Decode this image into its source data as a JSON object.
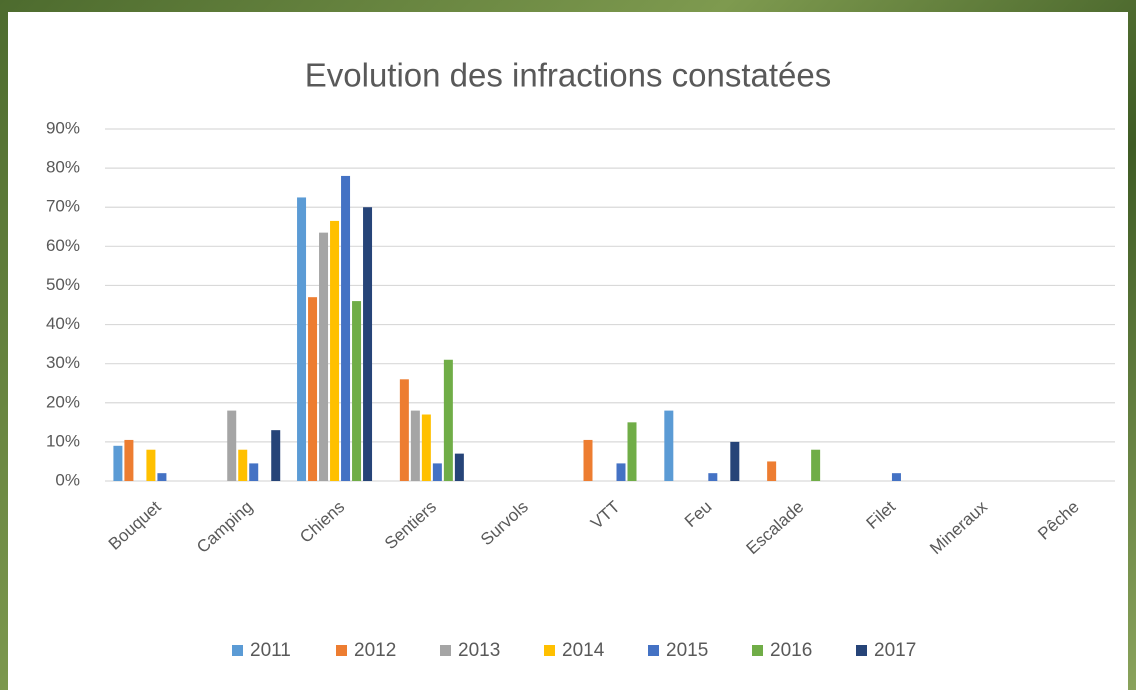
{
  "chart_data": {
    "type": "bar",
    "title": "Evolution des infractions constatées",
    "categories": [
      "Bouquet",
      "Camping",
      "Chiens",
      "Sentiers",
      "Survols",
      "VTT",
      "Feu",
      "Escalade",
      "Filet",
      "Mineraux",
      "Pêche"
    ],
    "series": [
      {
        "name": "2011",
        "color": "#5b9bd5",
        "values": [
          9,
          0,
          72.5,
          0,
          0,
          0,
          18,
          0,
          0,
          0,
          0
        ]
      },
      {
        "name": "2012",
        "color": "#ed7d31",
        "values": [
          10.5,
          0,
          47,
          26,
          0,
          10.5,
          0,
          5,
          0,
          0,
          0
        ]
      },
      {
        "name": "2013",
        "color": "#a5a5a5",
        "values": [
          0,
          18,
          63.5,
          18,
          0,
          0,
          0,
          0,
          0,
          0,
          0
        ]
      },
      {
        "name": "2014",
        "color": "#ffc000",
        "values": [
          8,
          8,
          66.5,
          17,
          0,
          0,
          0,
          0,
          0,
          0,
          0
        ]
      },
      {
        "name": "2015",
        "color": "#4472c4",
        "values": [
          2,
          4.5,
          78,
          4.5,
          0,
          4.5,
          2,
          0,
          2,
          0,
          0
        ]
      },
      {
        "name": "2016",
        "color": "#70ad47",
        "values": [
          0,
          0,
          46,
          31,
          0,
          15,
          0,
          8,
          0,
          0,
          0
        ]
      },
      {
        "name": "2017",
        "color": "#264478",
        "values": [
          0,
          13,
          70,
          7,
          0,
          0,
          10,
          0,
          0,
          0,
          0
        ]
      }
    ],
    "ylim": [
      0,
      90
    ],
    "yticks": [
      {
        "value": 0,
        "label": "0%"
      },
      {
        "value": 10,
        "label": "10%"
      },
      {
        "value": 20,
        "label": "20%"
      },
      {
        "value": 30,
        "label": "30%"
      },
      {
        "value": 40,
        "label": "40%"
      },
      {
        "value": 50,
        "label": "50%"
      },
      {
        "value": 60,
        "label": "60%"
      },
      {
        "value": 70,
        "label": "70%"
      },
      {
        "value": 80,
        "label": "80%"
      },
      {
        "value": 90,
        "label": "90%"
      }
    ],
    "grid": true,
    "legend": "bottom"
  }
}
